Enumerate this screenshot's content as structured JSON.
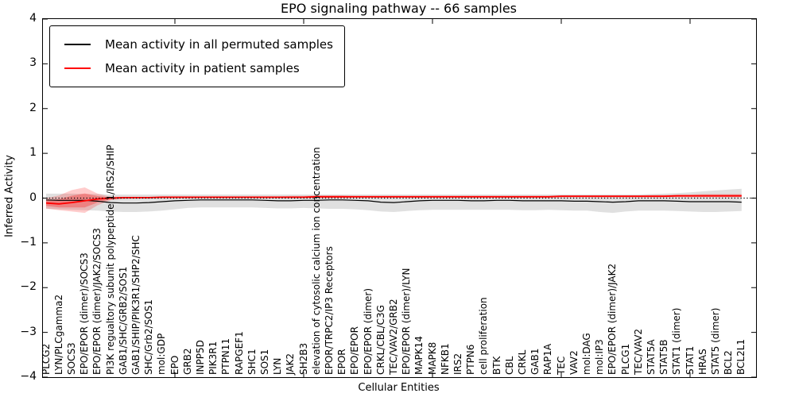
{
  "figure": {
    "title": "EPO signaling pathway -- 66 samples",
    "xlabel": "Cellular Entities",
    "ylabel": "Inferred Activity"
  },
  "legend": {
    "items": [
      {
        "label": "Mean activity in all permuted samples",
        "color": "#000000"
      },
      {
        "label": "Mean activity in patient samples",
        "color": "#ff0000"
      }
    ]
  },
  "chart_data": {
    "type": "line",
    "title": "EPO signaling pathway -- 66 samples",
    "xlabel": "Cellular Entities",
    "ylabel": "Inferred Activity",
    "ylim": [
      -4,
      4
    ],
    "yticks": [
      -4,
      -3,
      -2,
      -1,
      0,
      1,
      2,
      3,
      4
    ],
    "xtick_major_indices": [
      10,
      20,
      30,
      40,
      50
    ],
    "grid": false,
    "legend_position": "upper left",
    "zero_line": {
      "y": 0,
      "style": "dotted",
      "color": "#000000"
    },
    "categories": [
      "PLCG2",
      "LYN/PLCgamma2",
      "SOCS3",
      "EPO/EPOR (dimer)/SOCS3",
      "EPO/EPOR (dimer)/JAK2/SOCS3",
      "PI3K regualtory subunit polypeptide 1/IRS2/SHIP",
      "GAB1/SHC/GRB2/SOS1",
      "GAB1/SHIP/PIK3R1/SHP2/SHC",
      "SHC/Grb2/SOS1",
      "mol:GDP",
      "EPO",
      "GRB2",
      "INPP5D",
      "PIK3R1",
      "PTPN11",
      "RAPGEF1",
      "SHC1",
      "SOS1",
      "LYN",
      "JAK2",
      "SH2B3",
      "elevation of cytosolic calcium ion concentration",
      "EPOR/TRPC2/IP3 Receptors",
      "EPOR",
      "EPO/EPOR",
      "EPO/EPOR (dimer)",
      "CRKL/CBL/C3G",
      "TEC/VAV2/GRB2",
      "EPO/EPOR (dimer)/LYN",
      "MAPK14",
      "MAPK8",
      "NFKB1",
      "IRS2",
      "PTPN6",
      "cell proliferation",
      "BTK",
      "CBL",
      "CRKL",
      "GAB1",
      "RAP1A",
      "TEC",
      "VAV2",
      "mol:DAG",
      "mol:IP3",
      "EPO/EPOR (dimer)/JAK2",
      "PLCG1",
      "TEC/VAV2",
      "STAT5A",
      "STAT5B",
      "STAT1 (dimer)",
      "STAT1",
      "HRAS",
      "STAT5 (dimer)",
      "BCL2",
      "BCL2L1"
    ],
    "series": [
      {
        "name": "Mean activity in all permuted samples",
        "color": "#000000",
        "line_width": 1.2,
        "band_color": "#000000",
        "band_opacity": 0.12,
        "values": [
          -0.04,
          -0.05,
          -0.05,
          -0.05,
          -0.07,
          -0.1,
          -0.11,
          -0.11,
          -0.1,
          -0.08,
          -0.06,
          -0.05,
          -0.04,
          -0.04,
          -0.04,
          -0.04,
          -0.04,
          -0.05,
          -0.06,
          -0.06,
          -0.05,
          -0.05,
          -0.04,
          -0.04,
          -0.05,
          -0.06,
          -0.09,
          -0.1,
          -0.08,
          -0.06,
          -0.05,
          -0.05,
          -0.05,
          -0.06,
          -0.06,
          -0.05,
          -0.05,
          -0.06,
          -0.06,
          -0.06,
          -0.06,
          -0.07,
          -0.07,
          -0.08,
          -0.09,
          -0.08,
          -0.06,
          -0.06,
          -0.06,
          -0.07,
          -0.08,
          -0.08,
          -0.08,
          -0.08,
          -0.09
        ],
        "band_hi": [
          0.1,
          0.1,
          0.1,
          0.09,
          0.09,
          0.08,
          0.08,
          0.08,
          0.08,
          0.08,
          0.08,
          0.08,
          0.08,
          0.08,
          0.08,
          0.08,
          0.08,
          0.08,
          0.08,
          0.08,
          0.08,
          0.08,
          0.08,
          0.08,
          0.08,
          0.08,
          0.08,
          0.08,
          0.08,
          0.08,
          0.08,
          0.08,
          0.08,
          0.08,
          0.08,
          0.08,
          0.08,
          0.08,
          0.08,
          0.08,
          0.08,
          0.08,
          0.08,
          0.08,
          0.08,
          0.08,
          0.08,
          0.09,
          0.1,
          0.11,
          0.13,
          0.15,
          0.17,
          0.19,
          0.21
        ],
        "band_lo": [
          -0.24,
          -0.25,
          -0.26,
          -0.27,
          -0.28,
          -0.3,
          -0.31,
          -0.31,
          -0.3,
          -0.28,
          -0.25,
          -0.22,
          -0.21,
          -0.21,
          -0.21,
          -0.21,
          -0.21,
          -0.22,
          -0.23,
          -0.23,
          -0.22,
          -0.23,
          -0.24,
          -0.24,
          -0.25,
          -0.27,
          -0.3,
          -0.31,
          -0.29,
          -0.27,
          -0.26,
          -0.26,
          -0.26,
          -0.26,
          -0.26,
          -0.26,
          -0.26,
          -0.27,
          -0.27,
          -0.26,
          -0.27,
          -0.28,
          -0.28,
          -0.31,
          -0.33,
          -0.3,
          -0.28,
          -0.28,
          -0.28,
          -0.29,
          -0.3,
          -0.31,
          -0.31,
          -0.3,
          -0.29
        ]
      },
      {
        "name": "Mean activity in patient samples",
        "color": "#ff0000",
        "line_width": 1.8,
        "band_color": "#ff0000",
        "band_opacity": 0.2,
        "values": [
          -0.11,
          -0.13,
          -0.1,
          -0.06,
          -0.02,
          0.0,
          0.01,
          0.01,
          0.01,
          0.02,
          0.02,
          0.02,
          0.02,
          0.02,
          0.02,
          0.02,
          0.02,
          0.02,
          0.02,
          0.02,
          0.02,
          0.03,
          0.03,
          0.03,
          0.03,
          0.03,
          0.03,
          0.03,
          0.03,
          0.03,
          0.03,
          0.03,
          0.03,
          0.03,
          0.03,
          0.03,
          0.03,
          0.03,
          0.03,
          0.03,
          0.04,
          0.04,
          0.04,
          0.04,
          0.04,
          0.04,
          0.04,
          0.04,
          0.04,
          0.05,
          0.05,
          0.05,
          0.05,
          0.05,
          0.05
        ],
        "band_hi": [
          0.0,
          0.06,
          0.18,
          0.24,
          0.1,
          0.03,
          0.03,
          0.03,
          0.03,
          0.04,
          0.04,
          0.04,
          0.04,
          0.04,
          0.04,
          0.04,
          0.04,
          0.04,
          0.04,
          0.05,
          0.05,
          0.06,
          0.06,
          0.06,
          0.05,
          0.05,
          0.05,
          0.05,
          0.05,
          0.05,
          0.05,
          0.05,
          0.05,
          0.05,
          0.05,
          0.05,
          0.05,
          0.05,
          0.05,
          0.05,
          0.06,
          0.06,
          0.06,
          0.06,
          0.06,
          0.06,
          0.06,
          0.07,
          0.07,
          0.08,
          0.08,
          0.09,
          0.09,
          0.09,
          0.09
        ],
        "band_lo": [
          -0.23,
          -0.27,
          -0.3,
          -0.33,
          -0.16,
          -0.05,
          -0.02,
          -0.01,
          -0.01,
          0.0,
          0.0,
          0.0,
          0.0,
          0.0,
          0.0,
          0.0,
          0.0,
          0.0,
          0.0,
          0.0,
          0.0,
          0.0,
          0.0,
          0.0,
          0.01,
          0.01,
          0.01,
          0.01,
          0.01,
          0.01,
          0.01,
          0.01,
          0.01,
          0.01,
          0.01,
          0.01,
          0.01,
          0.01,
          0.01,
          0.01,
          0.02,
          0.02,
          0.02,
          0.02,
          0.02,
          0.02,
          0.02,
          0.02,
          0.02,
          0.02,
          0.02,
          0.02,
          0.02,
          0.02,
          0.02
        ]
      }
    ]
  }
}
